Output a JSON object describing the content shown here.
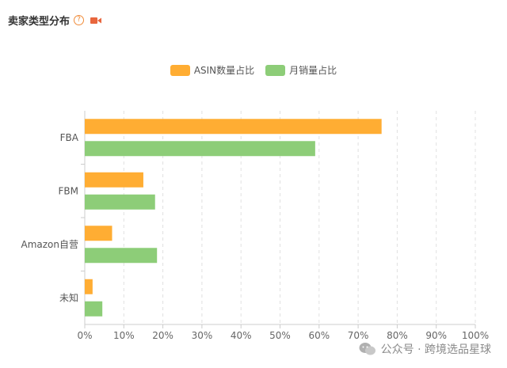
{
  "header": {
    "title": "卖家类型分布",
    "help_glyph": "?"
  },
  "chart_data": {
    "type": "bar",
    "orientation": "horizontal",
    "categories": [
      "FBA",
      "FBM",
      "Amazon自营",
      "未知"
    ],
    "series": [
      {
        "name": "ASIN数量占比",
        "color": "#ffad33",
        "values": [
          76,
          15,
          7,
          2
        ]
      },
      {
        "name": "月销量占比",
        "color": "#8dcd78",
        "values": [
          59,
          18,
          18.5,
          4.5
        ]
      }
    ],
    "xlim": [
      0,
      100
    ],
    "xticks": [
      "0%",
      "10%",
      "20%",
      "30%",
      "40%",
      "50%",
      "60%",
      "70%",
      "80%",
      "90%",
      "100%"
    ],
    "grid": "vertical dashed",
    "legend": "top-center"
  },
  "watermark": {
    "text": "公众号 · 跨境选品星球"
  },
  "colors": {
    "accent": "#f08c3a",
    "video_icon": "#e8663d"
  }
}
